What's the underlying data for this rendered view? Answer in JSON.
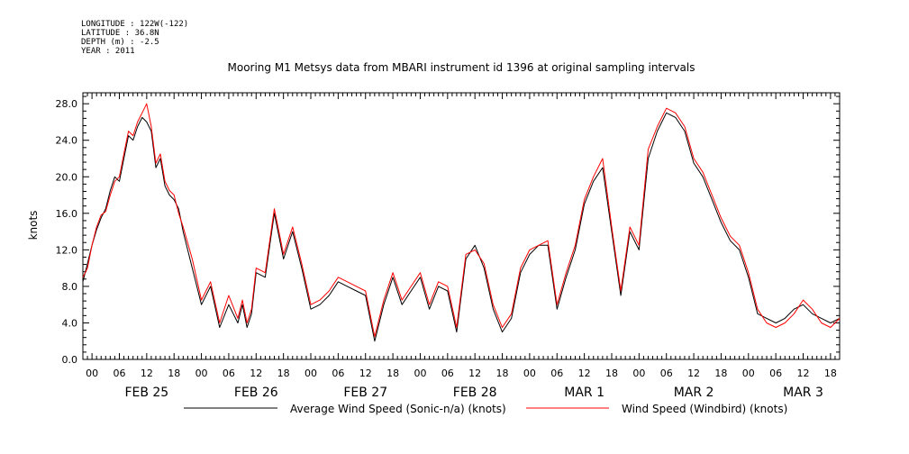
{
  "header": {
    "longitude": "LONGITUDE : 122W(-122)",
    "latitude": "LATITUDE : 36.8N",
    "depth": "DEPTH (m) : -2.5",
    "year": "YEAR : 2011"
  },
  "chart_data": {
    "type": "line",
    "title": "Mooring M1 Metsys data from MBARI instrument id 1396 at original sampling intervals",
    "ylabel": "knots",
    "xlabel": "",
    "ylim": [
      0,
      29.2
    ],
    "yticks": [
      "0.0",
      "4.0",
      "8.0",
      "12.0",
      "16.0",
      "20.0",
      "24.0",
      "28.0"
    ],
    "hour_ticks": [
      "00",
      "06",
      "12",
      "18",
      "00",
      "06",
      "12",
      "18",
      "00",
      "06",
      "12",
      "18",
      "00",
      "06",
      "12",
      "18",
      "00",
      "06",
      "12",
      "18",
      "00",
      "06",
      "12",
      "18",
      "00",
      "06",
      "12",
      "18"
    ],
    "day_labels": [
      "FEB 25",
      "FEB 26",
      "FEB 27",
      "FEB 28",
      "MAR  1",
      "MAR  2",
      "MAR  3"
    ],
    "x_unit": "hours from 2011-02-24 22:00",
    "x_range": [
      0,
      166
    ],
    "grid": false,
    "legend_position": "bottom",
    "series": [
      {
        "name": "Average Wind Speed (Sonic-n/a) (knots)",
        "color": "#000000",
        "x": [
          0,
          1,
          2,
          3,
          4,
          5,
          6,
          7,
          8,
          9,
          10,
          11,
          12,
          13,
          14,
          15,
          16,
          17,
          18,
          19,
          20,
          21,
          22,
          24,
          26,
          28,
          30,
          32,
          34,
          35,
          36,
          37,
          38,
          40,
          42,
          44,
          46,
          48,
          50,
          52,
          54,
          56,
          58,
          60,
          62,
          64,
          66,
          68,
          70,
          72,
          74,
          76,
          78,
          80,
          82,
          84,
          86,
          88,
          90,
          92,
          94,
          96,
          98,
          100,
          102,
          104,
          106,
          108,
          110,
          112,
          114,
          116,
          118,
          120,
          122,
          124,
          126,
          128,
          130,
          132,
          134,
          136,
          138,
          140,
          142,
          144,
          146,
          148,
          150,
          152,
          154,
          156,
          158,
          160,
          162,
          164,
          166
        ],
        "values": [
          8.5,
          10.5,
          12.5,
          14.2,
          15.5,
          16.5,
          18.5,
          20,
          19.5,
          22,
          24.5,
          24,
          25.5,
          26.5,
          26,
          25,
          21,
          22,
          19,
          18,
          17.5,
          16.5,
          14,
          10,
          6,
          8,
          3.5,
          6,
          4,
          6,
          3.5,
          5,
          9.5,
          9,
          16,
          11,
          14,
          10,
          5.5,
          6,
          7,
          8.5,
          8,
          7.5,
          7,
          2,
          6,
          9,
          6,
          7.5,
          9,
          5.5,
          8,
          7.5,
          3,
          11,
          12.5,
          10,
          5.5,
          3,
          4.5,
          9.5,
          11.5,
          12.5,
          12.5,
          5.5,
          9,
          12,
          17,
          19.5,
          21,
          14,
          7,
          14,
          12,
          22,
          25,
          27,
          26.5,
          25,
          21.5,
          20,
          17.5,
          15,
          13,
          12,
          9,
          5,
          4.5,
          4,
          4.5,
          5.5,
          6,
          5,
          4.5,
          4,
          4.5
        ]
      },
      {
        "name": "Wind Speed (Windbird) (knots)",
        "color": "#ff0000",
        "x": [
          0,
          1,
          2,
          3,
          4,
          5,
          6,
          7,
          8,
          9,
          10,
          11,
          12,
          13,
          14,
          15,
          16,
          17,
          18,
          19,
          20,
          21,
          22,
          24,
          26,
          28,
          30,
          32,
          34,
          35,
          36,
          37,
          38,
          40,
          42,
          44,
          46,
          48,
          50,
          52,
          54,
          56,
          58,
          60,
          62,
          64,
          66,
          68,
          70,
          72,
          74,
          76,
          78,
          80,
          82,
          84,
          86,
          88,
          90,
          92,
          94,
          96,
          98,
          100,
          102,
          104,
          106,
          108,
          110,
          112,
          114,
          116,
          118,
          120,
          122,
          124,
          126,
          128,
          130,
          132,
          134,
          136,
          138,
          140,
          142,
          144,
          146,
          148,
          150,
          152,
          154,
          156,
          158,
          160,
          162,
          164,
          166
        ],
        "values": [
          9,
          10,
          12.5,
          14.5,
          15.8,
          16.2,
          18,
          19.5,
          20,
          22.5,
          25,
          24.5,
          26,
          27,
          28,
          25.5,
          21.5,
          22.5,
          19.5,
          18.5,
          18,
          16,
          14.5,
          11,
          6.5,
          8.5,
          4,
          7,
          4.5,
          6.5,
          4,
          5.5,
          10,
          9.5,
          16.5,
          11.5,
          14.5,
          10.5,
          6,
          6.5,
          7.5,
          9,
          8.5,
          8,
          7.5,
          2.5,
          6.5,
          9.5,
          6.5,
          8,
          9.5,
          6,
          8.5,
          8,
          3.5,
          11.5,
          12,
          10.5,
          6,
          3.5,
          5,
          10,
          12,
          12.5,
          13,
          6,
          9.5,
          12.5,
          17.5,
          20,
          22,
          14.5,
          7.5,
          14.5,
          12.5,
          23,
          25.5,
          27.5,
          27,
          25.5,
          22,
          20.5,
          18,
          15.5,
          13.5,
          12.5,
          9.5,
          5.5,
          4,
          3.5,
          4,
          5,
          6.5,
          5.5,
          4,
          3.5,
          4.5
        ]
      }
    ]
  }
}
